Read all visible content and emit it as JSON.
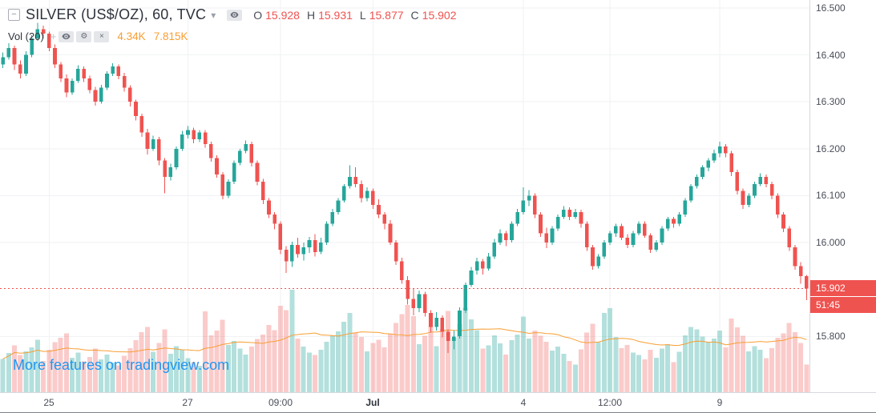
{
  "legend": {
    "collapse_glyph": "−",
    "symbol_title": "SILVER (US$/OZ), 60, TVC",
    "dropdown_glyph": "▾",
    "ohlc": {
      "o_label": "O",
      "o_value": "15.928",
      "h_label": "H",
      "h_value": "15.931",
      "l_label": "L",
      "l_value": "15.877",
      "c_label": "C",
      "c_value": "15.902"
    },
    "indicator": {
      "name": "Vol (20)",
      "plus_glyph": "+",
      "gear_glyph": "⚙",
      "close_glyph": "×",
      "value": "4.34K",
      "ma_value": "7.815K"
    }
  },
  "watermark": {
    "text": "More features on tradingview.com"
  },
  "price_axis": {
    "last_price_tag": "15.902",
    "countdown": "51:45"
  },
  "colors": {
    "up": "#26a69a",
    "down": "#ef5350",
    "volume_up": "rgba(38,166,154,0.35)",
    "volume_down": "rgba(239,83,80,0.30)",
    "volume_ma": "#f89e33",
    "grid": "#f0f2f5",
    "axis_text": "#4a4e59",
    "watermark_blue": "#2196f3",
    "tag_text": "#ffffff"
  },
  "chart_data": {
    "type": "candlestick",
    "title": "SILVER (US$/OZ), 60, TVC",
    "symbol": "SILVER (US$/OZ)",
    "interval_minutes": 60,
    "exchange": "TVC",
    "last_price": 15.902,
    "price_scale_top": 16.517,
    "price_scale_bottom": 15.681,
    "volume_ma_period": 20,
    "volume_unit": "K",
    "y_ticks": [
      {
        "value": 16.5,
        "label": "16.500"
      },
      {
        "value": 16.4,
        "label": "16.400"
      },
      {
        "value": 16.3,
        "label": "16.300"
      },
      {
        "value": 16.2,
        "label": "16.200"
      },
      {
        "value": 16.1,
        "label": "16.100"
      },
      {
        "value": 16.0,
        "label": "16.000"
      },
      {
        "value": 15.8,
        "label": "15.800"
      }
    ],
    "x_ticks": [
      {
        "index": 8,
        "label": "25"
      },
      {
        "index": 32,
        "label": "27"
      },
      {
        "index": 48,
        "label": "09:00"
      },
      {
        "index": 64,
        "label": "Jul",
        "bold": true
      },
      {
        "index": 90,
        "label": "4"
      },
      {
        "index": 105,
        "label": "12:00"
      },
      {
        "index": 124,
        "label": "9"
      }
    ],
    "columns": [
      "open",
      "high",
      "low",
      "close",
      "volume_k"
    ],
    "candles": [
      [
        16.38,
        16.405,
        16.372,
        16.395,
        5.2
      ],
      [
        16.395,
        16.425,
        16.39,
        16.415,
        6.1
      ],
      [
        16.415,
        16.42,
        16.368,
        16.38,
        7.3
      ],
      [
        16.38,
        16.388,
        16.35,
        16.36,
        5.8
      ],
      [
        16.36,
        16.408,
        16.355,
        16.4,
        6.4
      ],
      [
        16.4,
        16.442,
        16.395,
        16.435,
        7.0
      ],
      [
        16.435,
        16.468,
        16.43,
        16.455,
        8.2
      ],
      [
        16.455,
        16.462,
        16.435,
        16.445,
        4.9
      ],
      [
        16.445,
        16.45,
        16.408,
        16.415,
        6.6
      ],
      [
        16.415,
        16.422,
        16.372,
        16.38,
        7.8
      ],
      [
        16.38,
        16.385,
        16.342,
        16.35,
        8.5
      ],
      [
        16.35,
        16.358,
        16.31,
        16.32,
        9.2
      ],
      [
        16.32,
        16.35,
        16.315,
        16.345,
        5.4
      ],
      [
        16.345,
        16.378,
        16.34,
        16.37,
        6.2
      ],
      [
        16.37,
        16.375,
        16.342,
        16.35,
        4.8
      ],
      [
        16.35,
        16.356,
        16.318,
        16.325,
        5.5
      ],
      [
        16.325,
        16.332,
        16.292,
        16.3,
        6.8
      ],
      [
        16.3,
        16.336,
        16.296,
        16.33,
        5.1
      ],
      [
        16.33,
        16.365,
        16.325,
        16.36,
        5.9
      ],
      [
        16.36,
        16.382,
        16.355,
        16.375,
        4.6
      ],
      [
        16.375,
        16.38,
        16.348,
        16.355,
        4.2
      ],
      [
        16.355,
        16.362,
        16.322,
        16.33,
        5.7
      ],
      [
        16.33,
        16.335,
        16.29,
        16.3,
        6.9
      ],
      [
        16.3,
        16.305,
        16.26,
        16.27,
        8.1
      ],
      [
        16.27,
        16.275,
        16.225,
        16.235,
        9.4
      ],
      [
        16.235,
        16.242,
        16.188,
        16.2,
        10.2
      ],
      [
        16.2,
        16.228,
        16.195,
        16.22,
        6.3
      ],
      [
        16.22,
        16.225,
        16.165,
        16.175,
        7.7
      ],
      [
        16.175,
        16.18,
        16.105,
        16.14,
        9.8
      ],
      [
        16.14,
        16.168,
        16.132,
        16.16,
        6.0
      ],
      [
        16.16,
        16.205,
        16.155,
        16.2,
        7.2
      ],
      [
        16.2,
        16.238,
        16.195,
        16.23,
        6.6
      ],
      [
        16.23,
        16.248,
        16.222,
        16.24,
        5.3
      ],
      [
        16.24,
        16.245,
        16.212,
        16.22,
        4.7
      ],
      [
        16.22,
        16.24,
        16.214,
        16.235,
        4.1
      ],
      [
        16.235,
        16.24,
        16.202,
        16.21,
        12.6
      ],
      [
        16.21,
        16.215,
        16.172,
        16.18,
        8.9
      ],
      [
        16.18,
        16.186,
        16.138,
        16.145,
        9.6
      ],
      [
        16.145,
        16.15,
        16.092,
        16.1,
        11.3
      ],
      [
        16.1,
        16.135,
        16.095,
        16.13,
        7.4
      ],
      [
        16.13,
        16.175,
        16.125,
        16.17,
        8.0
      ],
      [
        16.17,
        16.2,
        16.165,
        16.195,
        6.8
      ],
      [
        16.195,
        16.218,
        16.19,
        16.21,
        5.9
      ],
      [
        16.21,
        16.215,
        16.162,
        16.17,
        7.1
      ],
      [
        16.17,
        16.175,
        16.122,
        16.13,
        8.3
      ],
      [
        16.13,
        16.136,
        16.082,
        16.09,
        9.0
      ],
      [
        16.09,
        16.095,
        16.052,
        16.06,
        10.5
      ],
      [
        16.06,
        16.065,
        16.028,
        16.04,
        9.7
      ],
      [
        16.04,
        16.045,
        15.975,
        15.985,
        13.5
      ],
      [
        15.985,
        15.992,
        15.935,
        15.96,
        12.8
      ],
      [
        15.96,
        16.002,
        15.948,
        15.995,
        16.0
      ],
      [
        15.995,
        16.01,
        15.968,
        15.975,
        8.4
      ],
      [
        15.975,
        16.0,
        15.962,
        15.99,
        7.1
      ],
      [
        15.99,
        16.012,
        15.978,
        16.005,
        6.2
      ],
      [
        16.005,
        16.018,
        15.97,
        15.98,
        5.8
      ],
      [
        15.98,
        16.01,
        15.975,
        16.0,
        6.6
      ],
      [
        16.0,
        16.045,
        15.995,
        16.04,
        7.9
      ],
      [
        16.04,
        16.072,
        16.035,
        16.065,
        8.8
      ],
      [
        16.065,
        16.095,
        16.06,
        16.09,
        9.5
      ],
      [
        16.09,
        16.125,
        16.085,
        16.12,
        11.0
      ],
      [
        16.12,
        16.165,
        16.115,
        16.14,
        12.4
      ],
      [
        16.14,
        16.16,
        16.118,
        16.125,
        9.3
      ],
      [
        16.125,
        16.132,
        16.085,
        16.095,
        8.6
      ],
      [
        16.095,
        16.118,
        16.088,
        16.11,
        6.4
      ],
      [
        16.11,
        16.115,
        16.072,
        16.08,
        7.7
      ],
      [
        16.08,
        16.092,
        16.052,
        16.06,
        8.2
      ],
      [
        16.06,
        16.065,
        16.028,
        16.04,
        7.0
      ],
      [
        16.04,
        16.048,
        15.995,
        16.0,
        9.1
      ],
      [
        16.0,
        16.005,
        15.952,
        15.96,
        10.8
      ],
      [
        15.96,
        15.968,
        15.912,
        15.92,
        12.2
      ],
      [
        15.92,
        15.928,
        15.868,
        15.88,
        13.6
      ],
      [
        15.88,
        15.902,
        15.845,
        15.86,
        11.9
      ],
      [
        15.86,
        15.898,
        15.852,
        15.89,
        7.5
      ],
      [
        15.89,
        15.895,
        15.842,
        15.85,
        8.8
      ],
      [
        15.85,
        15.856,
        15.808,
        15.82,
        10.4
      ],
      [
        15.82,
        15.852,
        15.812,
        15.84,
        7.2
      ],
      [
        15.84,
        15.845,
        15.798,
        15.81,
        9.9
      ],
      [
        15.81,
        15.815,
        15.765,
        15.79,
        12.7
      ],
      [
        15.79,
        15.812,
        15.772,
        15.8,
        8.5
      ],
      [
        15.8,
        15.862,
        15.795,
        15.855,
        10.6
      ],
      [
        15.855,
        15.915,
        15.85,
        15.91,
        13.2
      ],
      [
        15.91,
        15.948,
        15.905,
        15.94,
        11.4
      ],
      [
        15.94,
        15.968,
        15.932,
        15.96,
        9.7
      ],
      [
        15.96,
        15.965,
        15.932,
        15.945,
        6.8
      ],
      [
        15.945,
        15.978,
        15.94,
        15.97,
        7.3
      ],
      [
        15.97,
        16.008,
        15.965,
        16.0,
        8.9
      ],
      [
        16.0,
        16.028,
        15.995,
        16.02,
        7.6
      ],
      [
        16.02,
        16.025,
        15.992,
        16.005,
        5.9
      ],
      [
        16.005,
        16.045,
        16.0,
        16.04,
        8.1
      ],
      [
        16.04,
        16.072,
        16.035,
        16.065,
        9.0
      ],
      [
        16.065,
        16.118,
        16.06,
        16.09,
        11.8
      ],
      [
        16.09,
        16.112,
        16.078,
        16.1,
        8.4
      ],
      [
        16.1,
        16.105,
        16.052,
        16.06,
        9.6
      ],
      [
        16.06,
        16.065,
        16.012,
        16.02,
        8.8
      ],
      [
        16.02,
        16.032,
        15.988,
        16.0,
        7.9
      ],
      [
        16.0,
        16.035,
        15.995,
        16.03,
        6.5
      ],
      [
        16.03,
        16.06,
        16.025,
        16.055,
        7.1
      ],
      [
        16.055,
        16.078,
        16.05,
        16.07,
        6.0
      ],
      [
        16.07,
        16.075,
        16.048,
        16.055,
        4.9
      ],
      [
        16.055,
        16.072,
        16.05,
        16.065,
        4.3
      ],
      [
        16.065,
        16.07,
        16.032,
        16.04,
        6.7
      ],
      [
        16.04,
        16.045,
        15.982,
        15.99,
        9.3
      ],
      [
        15.99,
        15.995,
        15.942,
        15.95,
        10.7
      ],
      [
        15.95,
        15.975,
        15.945,
        15.97,
        7.8
      ],
      [
        15.97,
        16.005,
        15.965,
        16.0,
        12.4
      ],
      [
        16.0,
        16.025,
        15.995,
        16.02,
        13.1
      ],
      [
        16.02,
        16.04,
        16.012,
        16.035,
        8.6
      ],
      [
        16.035,
        16.04,
        16.005,
        16.01,
        6.9
      ],
      [
        16.01,
        16.018,
        15.988,
        15.995,
        7.4
      ],
      [
        15.995,
        16.025,
        15.99,
        16.02,
        6.2
      ],
      [
        16.02,
        16.045,
        16.015,
        16.04,
        5.8
      ],
      [
        16.04,
        16.045,
        16.01,
        16.015,
        5.1
      ],
      [
        16.015,
        16.02,
        15.978,
        15.985,
        6.6
      ],
      [
        15.985,
        16.005,
        15.98,
        16.0,
        5.4
      ],
      [
        16.0,
        16.035,
        15.995,
        16.03,
        6.8
      ],
      [
        16.03,
        16.055,
        16.025,
        16.05,
        7.5
      ],
      [
        16.05,
        16.055,
        16.032,
        16.04,
        4.7
      ],
      [
        16.04,
        16.065,
        16.035,
        16.06,
        6.3
      ],
      [
        16.06,
        16.095,
        16.055,
        16.09,
        8.9
      ],
      [
        16.09,
        16.125,
        16.085,
        16.12,
        10.2
      ],
      [
        16.12,
        16.145,
        16.115,
        16.14,
        9.8
      ],
      [
        16.14,
        16.165,
        16.135,
        16.16,
        8.7
      ],
      [
        16.16,
        16.18,
        16.152,
        16.175,
        7.9
      ],
      [
        16.175,
        16.198,
        16.17,
        16.19,
        8.4
      ],
      [
        16.19,
        16.215,
        16.182,
        16.205,
        9.6
      ],
      [
        16.205,
        16.21,
        16.182,
        16.19,
        7.0
      ],
      [
        16.19,
        16.195,
        16.142,
        16.15,
        11.5
      ],
      [
        16.15,
        16.155,
        16.102,
        16.11,
        10.1
      ],
      [
        16.11,
        16.115,
        16.072,
        16.08,
        8.8
      ],
      [
        16.08,
        16.105,
        16.075,
        16.1,
        6.4
      ],
      [
        16.1,
        16.13,
        16.095,
        16.125,
        7.2
      ],
      [
        16.125,
        16.148,
        16.12,
        16.14,
        6.6
      ],
      [
        16.14,
        16.145,
        16.118,
        16.125,
        5.3
      ],
      [
        16.125,
        16.13,
        16.092,
        16.1,
        6.9
      ],
      [
        16.1,
        16.105,
        16.052,
        16.06,
        8.5
      ],
      [
        16.06,
        16.065,
        16.022,
        16.03,
        9.2
      ],
      [
        16.03,
        16.035,
        15.982,
        15.99,
        10.8
      ],
      [
        15.99,
        15.995,
        15.942,
        15.95,
        9.4
      ],
      [
        15.95,
        15.958,
        15.912,
        15.928,
        7.7
      ],
      [
        15.928,
        15.931,
        15.877,
        15.902,
        4.34
      ]
    ]
  }
}
